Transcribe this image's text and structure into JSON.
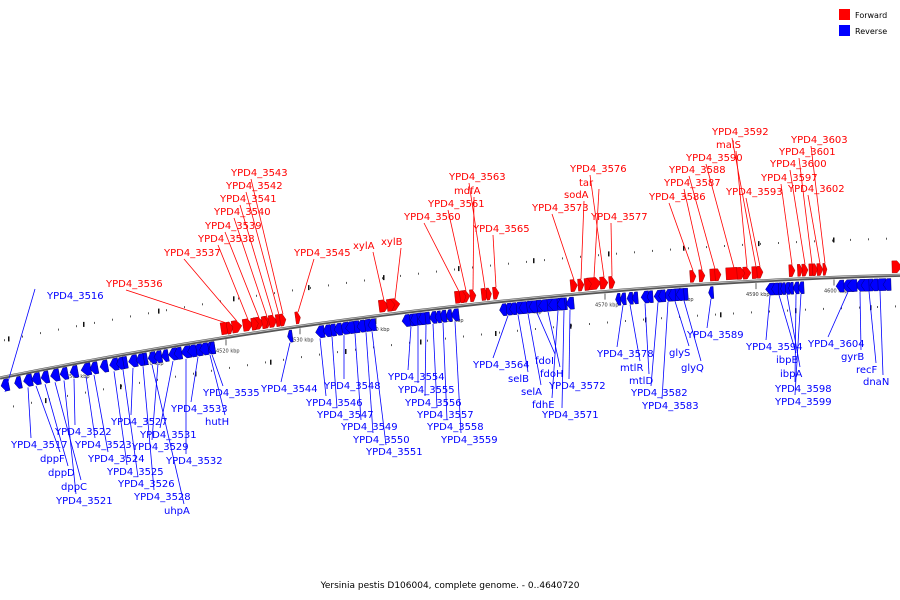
{
  "caption": "Yersinia pestis D106004, complete genome. - 0..4640720",
  "legend": [
    {
      "label": "Forward",
      "color": "#ff0000"
    },
    {
      "label": "Reverse",
      "color": "#0000ff"
    }
  ],
  "colors": {
    "forward": "#ff0000",
    "reverse": "#0000ff",
    "backbone": "#888888"
  },
  "ticks": [
    "4500 kbp",
    "4510 kbp",
    "4520 kbp",
    "4530 kbp",
    "4540 kbp",
    "4550 kbp",
    "4560 kbp",
    "4570 kbp",
    "4580 kbp",
    "4590 kbp",
    "4600 kbp"
  ],
  "forward_genes": [
    "YPD4_3536",
    "YPD4_3537",
    "YPD4_3538",
    "YPD4_3539",
    "YPD4_3540",
    "YPD4_3541",
    "YPD4_3542",
    "YPD4_3543",
    "YPD4_3545",
    "xylA",
    "xylB",
    "YPD4_3560",
    "YPD4_3561",
    "mdfA",
    "YPD4_3563",
    "YPD4_3565",
    "YPD4_3573",
    "sodA",
    "tar",
    "YPD4_3576",
    "YPD4_3577",
    "YPD4_3586",
    "YPD4_3587",
    "YPD4_3588",
    "YPD4_3590",
    "malS",
    "YPD4_3592",
    "YPD4_3593",
    "YPD4_3597",
    "YPD4_3600",
    "YPD4_3601",
    "YPD4_3602",
    "YPD4_3603"
  ],
  "reverse_genes": [
    "YPD4_3516",
    "YPD4_3517",
    "dppF",
    "dppD",
    "dppC",
    "YPD4_3521",
    "YPD4_3522",
    "YPD4_3523",
    "YPD4_3524",
    "YPD4_3525",
    "YPD4_3526",
    "YPD4_3527",
    "YPD4_3528",
    "uhpA",
    "YPD4_3529",
    "YPD4_3531",
    "YPD4_3532",
    "YPD4_3533",
    "hutH",
    "YPD4_3535",
    "YPD4_3544",
    "YPD4_3546",
    "YPD4_3547",
    "YPD4_3548",
    "YPD4_3549",
    "YPD4_3550",
    "YPD4_3551",
    "YPD4_3554",
    "YPD4_3555",
    "YPD4_3556",
    "YPD4_3557",
    "YPD4_3558",
    "YPD4_3559",
    "YPD4_3564",
    "selB",
    "selA",
    "fdoI",
    "fdoH",
    "fdhE",
    "YPD4_3571",
    "YPD4_3572",
    "YPD4_3578",
    "mtlR",
    "mtlD",
    "YPD4_3582",
    "YPD4_3583",
    "glyS",
    "glyQ",
    "YPD4_3589",
    "YPD4_3594",
    "ibpB",
    "ibpA",
    "YPD4_3598",
    "YPD4_3599",
    "YPD4_3604",
    "gyrB",
    "recF",
    "dnaN"
  ]
}
